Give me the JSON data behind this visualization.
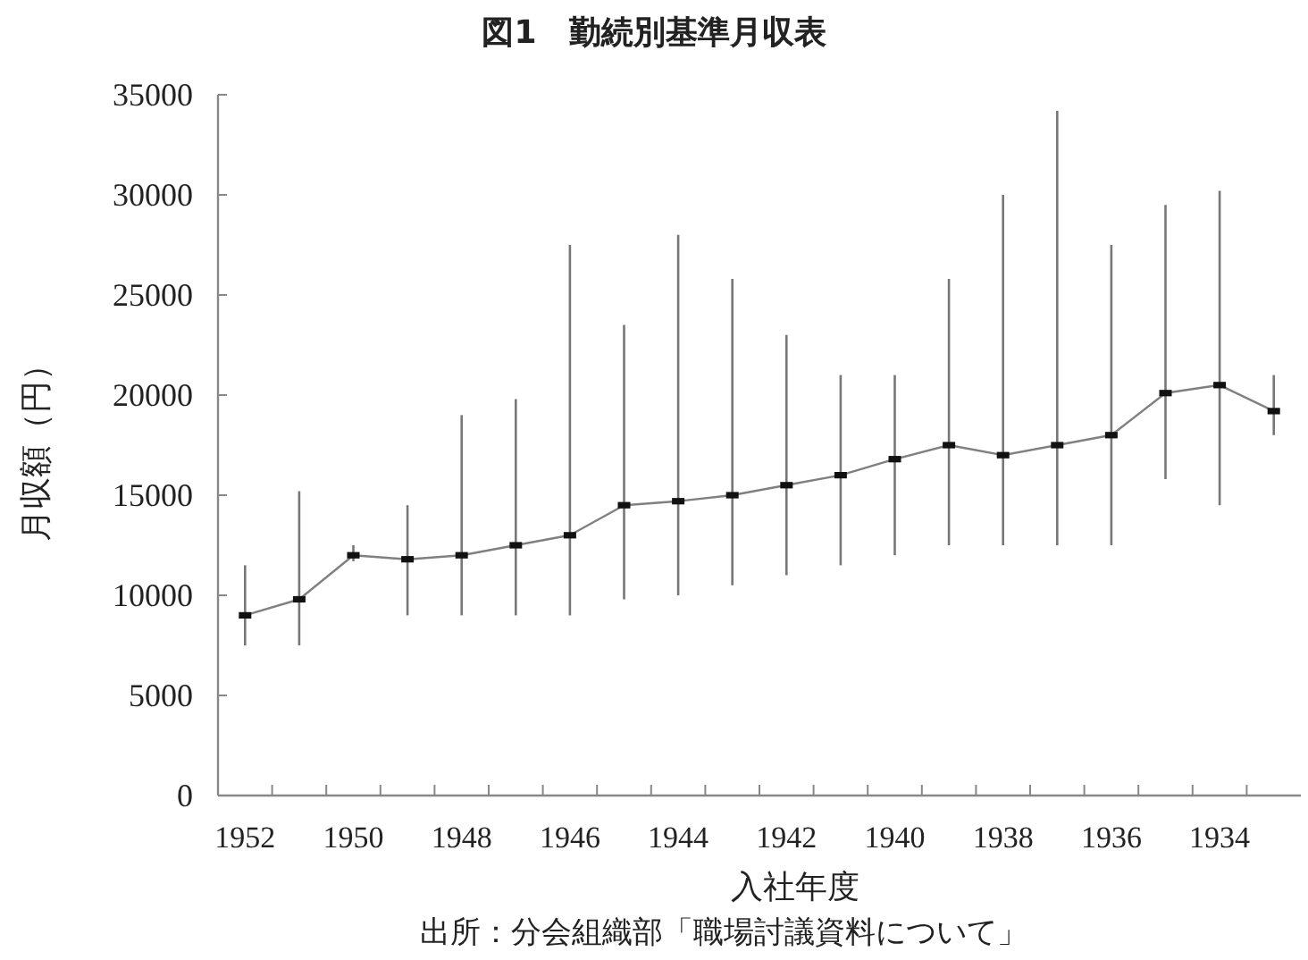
{
  "chart_data": {
    "type": "line",
    "title": "図1　勤続別基準月収表",
    "xlabel": "入社年度",
    "ylabel": "月収額（円）",
    "annotations": [
      "出所：分会組織部「職場討議資料について」"
    ],
    "categories": [
      "1952",
      null,
      "1950",
      null,
      "1948",
      null,
      "1946",
      null,
      "1944",
      null,
      "1942",
      null,
      "1940",
      null,
      "1938",
      null,
      "1936",
      null,
      "1934",
      null
    ],
    "series": [
      {
        "color": "#808080",
        "values": [
          9000,
          9800,
          12000,
          11800,
          12000,
          12500,
          13000,
          14500,
          14700,
          15000,
          15500,
          16000,
          16800,
          17500,
          17000,
          17500,
          18000,
          20100,
          20500,
          19200
        ],
        "errors": [
          [
            7500,
            11500
          ],
          [
            7500,
            15200
          ],
          [
            11700,
            12500
          ],
          [
            9000,
            14500
          ],
          [
            9000,
            19000
          ],
          [
            9000,
            19800
          ],
          [
            9000,
            27500
          ],
          [
            9800,
            23500
          ],
          [
            10000,
            28000
          ],
          [
            10500,
            25800
          ],
          [
            11000,
            23000
          ],
          [
            11500,
            21000
          ],
          [
            12000,
            21000
          ],
          [
            12500,
            25800
          ],
          [
            12500,
            30000
          ],
          [
            12500,
            34200
          ],
          [
            12500,
            27500
          ],
          [
            15800,
            29500
          ],
          [
            14500,
            30200
          ],
          [
            18000,
            21000
          ]
        ]
      }
    ],
    "ylim": [
      0,
      35000
    ],
    "yticks": [
      0,
      5000,
      10000,
      15000,
      20000,
      25000,
      30000,
      35000
    ],
    "marker": "square",
    "grid": false
  }
}
